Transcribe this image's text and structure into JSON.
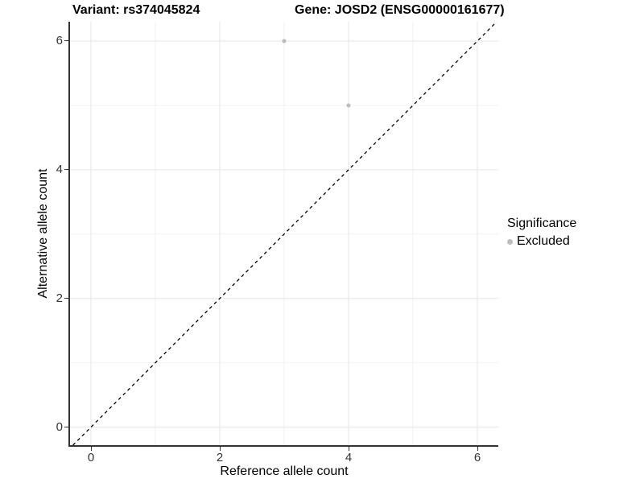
{
  "titles": {
    "variant": "Variant: rs374045824",
    "gene": "Gene: JOSD2 (ENSG00000161677)"
  },
  "legend": {
    "title": "Significance",
    "items": [
      {
        "label": "Excluded",
        "color": "#bebebe"
      }
    ]
  },
  "colors": {
    "axis_line": "#333333",
    "tick_text": "#333333",
    "grid_major": "#e6e6e6",
    "grid_minor": "#f2f2f2",
    "point": "#bebebe",
    "identity_line": "#000000",
    "background": "#ffffff"
  },
  "chart_data": {
    "type": "scatter",
    "title": "Variant: rs374045824   Gene: JOSD2 (ENSG00000161677)",
    "xlabel": "Reference allele count",
    "ylabel": "Alternative allele count",
    "xlim": [
      -0.325,
      6.325
    ],
    "ylim": [
      -0.28,
      6.3
    ],
    "major_ticks": [
      0,
      2,
      4,
      6
    ],
    "x_tick_labels": [
      "0",
      "2",
      "4",
      "6"
    ],
    "y_tick_labels": [
      "0",
      "2",
      "4",
      "6"
    ],
    "minor_ticks": [
      1,
      3,
      5
    ],
    "grid": true,
    "legend_position": "right",
    "series": [
      {
        "name": "Excluded",
        "color": "#bebebe",
        "points": [
          {
            "x": 3,
            "y": 6
          },
          {
            "x": 4,
            "y": 5
          }
        ]
      }
    ],
    "reference_line": {
      "type": "identity",
      "from": -0.28,
      "to": 6.3,
      "style": "dashed",
      "color": "#000000"
    }
  }
}
